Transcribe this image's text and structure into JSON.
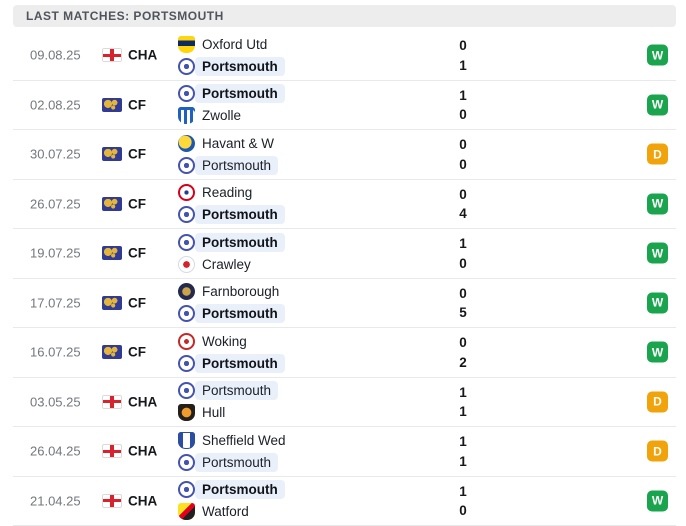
{
  "header": {
    "title": "LAST MATCHES: PORTSMOUTH"
  },
  "colors": {
    "win_badge": "#1AA44D",
    "draw_badge": "#F0A30B",
    "portsmouth_pill": "#EAF0FA",
    "header_bg": "#EDEDED"
  },
  "matches": [
    {
      "date": "09.08.25",
      "competition": "CHA",
      "flag": "england",
      "result": "W",
      "teams": [
        {
          "name": "Oxford Utd",
          "logo": "oxford",
          "score": "0",
          "winner": false,
          "highlight": false
        },
        {
          "name": "Portsmouth",
          "logo": "portsmouth",
          "score": "1",
          "winner": true,
          "highlight": true
        }
      ]
    },
    {
      "date": "02.08.25",
      "competition": "CF",
      "flag": "world",
      "result": "W",
      "teams": [
        {
          "name": "Portsmouth",
          "logo": "portsmouth",
          "score": "1",
          "winner": true,
          "highlight": true
        },
        {
          "name": "Zwolle",
          "logo": "zwolle",
          "score": "0",
          "winner": false,
          "highlight": false
        }
      ]
    },
    {
      "date": "30.07.25",
      "competition": "CF",
      "flag": "world",
      "result": "D",
      "teams": [
        {
          "name": "Havant & W",
          "logo": "havant",
          "score": "0",
          "winner": false,
          "highlight": false
        },
        {
          "name": "Portsmouth",
          "logo": "portsmouth",
          "score": "0",
          "winner": false,
          "highlight": true
        }
      ]
    },
    {
      "date": "26.07.25",
      "competition": "CF",
      "flag": "world",
      "result": "W",
      "teams": [
        {
          "name": "Reading",
          "logo": "reading",
          "score": "0",
          "winner": false,
          "highlight": false
        },
        {
          "name": "Portsmouth",
          "logo": "portsmouth",
          "score": "4",
          "winner": true,
          "highlight": true
        }
      ]
    },
    {
      "date": "19.07.25",
      "competition": "CF",
      "flag": "world",
      "result": "W",
      "teams": [
        {
          "name": "Portsmouth",
          "logo": "portsmouth",
          "score": "1",
          "winner": true,
          "highlight": true
        },
        {
          "name": "Crawley",
          "logo": "crawley",
          "score": "0",
          "winner": false,
          "highlight": false
        }
      ]
    },
    {
      "date": "17.07.25",
      "competition": "CF",
      "flag": "world",
      "result": "W",
      "teams": [
        {
          "name": "Farnborough",
          "logo": "farnborough",
          "score": "0",
          "winner": false,
          "highlight": false
        },
        {
          "name": "Portsmouth",
          "logo": "portsmouth",
          "score": "5",
          "winner": true,
          "highlight": true
        }
      ]
    },
    {
      "date": "16.07.25",
      "competition": "CF",
      "flag": "world",
      "result": "W",
      "teams": [
        {
          "name": "Woking",
          "logo": "woking",
          "score": "0",
          "winner": false,
          "highlight": false
        },
        {
          "name": "Portsmouth",
          "logo": "portsmouth",
          "score": "2",
          "winner": true,
          "highlight": true
        }
      ]
    },
    {
      "date": "03.05.25",
      "competition": "CHA",
      "flag": "england",
      "result": "D",
      "teams": [
        {
          "name": "Portsmouth",
          "logo": "portsmouth",
          "score": "1",
          "winner": false,
          "highlight": true
        },
        {
          "name": "Hull",
          "logo": "hull",
          "score": "1",
          "winner": false,
          "highlight": false
        }
      ]
    },
    {
      "date": "26.04.25",
      "competition": "CHA",
      "flag": "england",
      "result": "D",
      "teams": [
        {
          "name": "Sheffield Wed",
          "logo": "sheffwed",
          "score": "1",
          "winner": false,
          "highlight": false
        },
        {
          "name": "Portsmouth",
          "logo": "portsmouth",
          "score": "1",
          "winner": false,
          "highlight": true
        }
      ]
    },
    {
      "date": "21.04.25",
      "competition": "CHA",
      "flag": "england",
      "result": "W",
      "teams": [
        {
          "name": "Portsmouth",
          "logo": "portsmouth",
          "score": "1",
          "winner": true,
          "highlight": true
        },
        {
          "name": "Watford",
          "logo": "watford",
          "score": "0",
          "winner": false,
          "highlight": false
        }
      ]
    }
  ]
}
